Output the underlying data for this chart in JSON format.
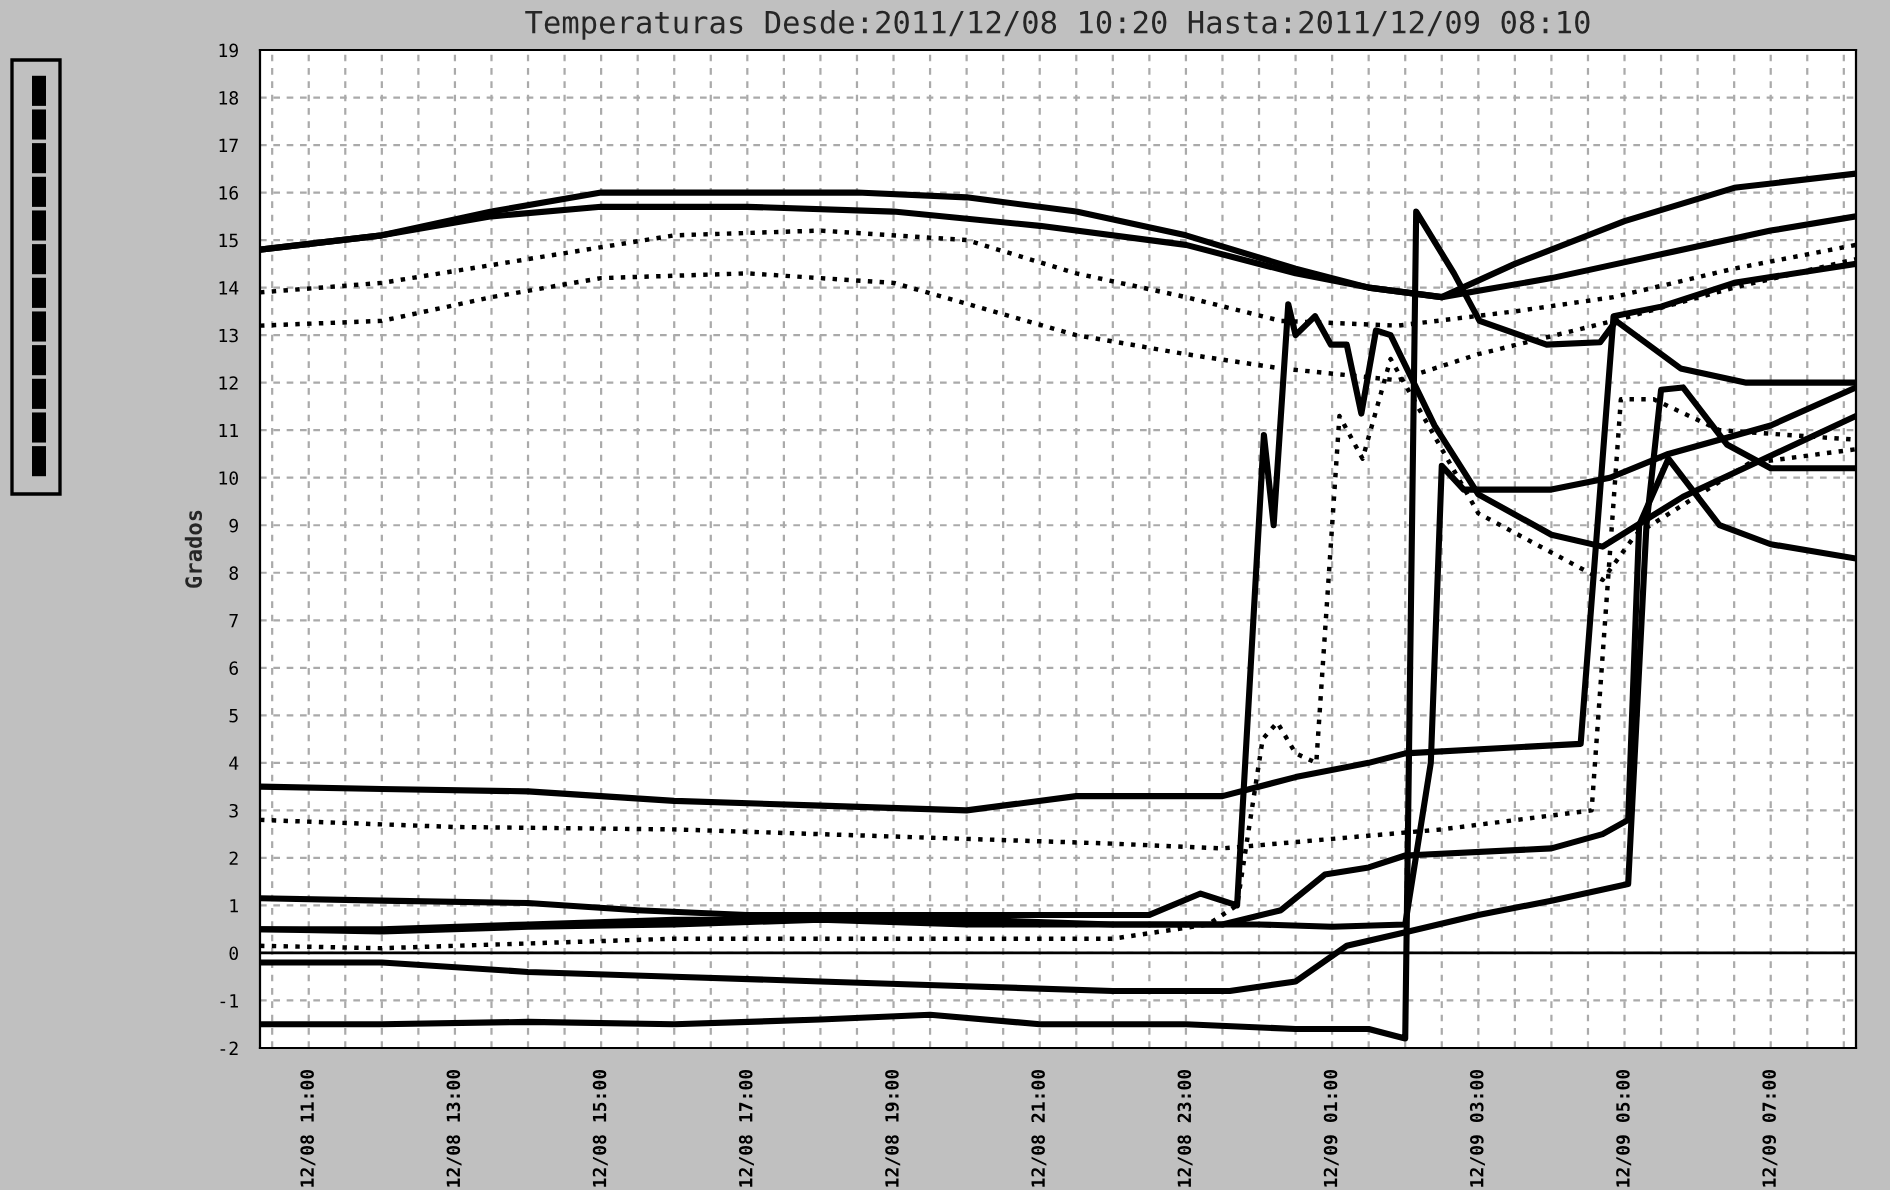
{
  "chart_data": {
    "type": "line",
    "title": "Temperaturas Desde:2011/12/08 10:20 Hasta:2011/12/09 08:10",
    "ylabel": "Grados",
    "xlim": [
      "2011-12-08T10:20",
      "2011-12-09T08:10"
    ],
    "ylim": [
      -2,
      19
    ],
    "yticks": [
      -2,
      -1,
      0,
      1,
      2,
      3,
      4,
      5,
      6,
      7,
      8,
      9,
      10,
      11,
      12,
      13,
      14,
      15,
      16,
      17,
      18,
      19
    ],
    "xticks": [
      {
        "value": "2011-12-08T10:30",
        "label": null
      },
      {
        "value": "2011-12-08T11:00",
        "label": "12/08 11:00"
      },
      {
        "value": "2011-12-08T11:30",
        "label": null
      },
      {
        "value": "2011-12-08T12:00",
        "label": null
      },
      {
        "value": "2011-12-08T12:30",
        "label": null
      },
      {
        "value": "2011-12-08T13:00",
        "label": "12/08 13:00"
      },
      {
        "value": "2011-12-08T13:30",
        "label": null
      },
      {
        "value": "2011-12-08T14:00",
        "label": null
      },
      {
        "value": "2011-12-08T14:30",
        "label": null
      },
      {
        "value": "2011-12-08T15:00",
        "label": "12/08 15:00"
      },
      {
        "value": "2011-12-08T15:30",
        "label": null
      },
      {
        "value": "2011-12-08T16:00",
        "label": null
      },
      {
        "value": "2011-12-08T16:30",
        "label": null
      },
      {
        "value": "2011-12-08T17:00",
        "label": "12/08 17:00"
      },
      {
        "value": "2011-12-08T17:30",
        "label": null
      },
      {
        "value": "2011-12-08T18:00",
        "label": null
      },
      {
        "value": "2011-12-08T18:30",
        "label": null
      },
      {
        "value": "2011-12-08T19:00",
        "label": "12/08 19:00"
      },
      {
        "value": "2011-12-08T19:30",
        "label": null
      },
      {
        "value": "2011-12-08T20:00",
        "label": null
      },
      {
        "value": "2011-12-08T20:30",
        "label": null
      },
      {
        "value": "2011-12-08T21:00",
        "label": "12/08 21:00"
      },
      {
        "value": "2011-12-08T21:30",
        "label": null
      },
      {
        "value": "2011-12-08T22:00",
        "label": null
      },
      {
        "value": "2011-12-08T22:30",
        "label": null
      },
      {
        "value": "2011-12-08T23:00",
        "label": "12/08 23:00"
      },
      {
        "value": "2011-12-08T23:30",
        "label": null
      },
      {
        "value": "2011-12-09T00:00",
        "label": null
      },
      {
        "value": "2011-12-09T00:30",
        "label": null
      },
      {
        "value": "2011-12-09T01:00",
        "label": "12/09 01:00"
      },
      {
        "value": "2011-12-09T01:30",
        "label": null
      },
      {
        "value": "2011-12-09T02:00",
        "label": null
      },
      {
        "value": "2011-12-09T02:30",
        "label": null
      },
      {
        "value": "2011-12-09T03:00",
        "label": "12/09 03:00"
      },
      {
        "value": "2011-12-09T03:30",
        "label": null
      },
      {
        "value": "2011-12-09T04:00",
        "label": null
      },
      {
        "value": "2011-12-09T04:30",
        "label": null
      },
      {
        "value": "2011-12-09T05:00",
        "label": "12/09 05:00"
      },
      {
        "value": "2011-12-09T05:30",
        "label": null
      },
      {
        "value": "2011-12-09T06:00",
        "label": null
      },
      {
        "value": "2011-12-09T06:30",
        "label": null
      },
      {
        "value": "2011-12-09T07:00",
        "label": "12/09 07:00"
      },
      {
        "value": "2011-12-09T07:30",
        "label": null
      },
      {
        "value": "2011-12-09T08:00",
        "label": null
      }
    ],
    "grid": true,
    "marker": "none",
    "ref_lines": [
      {
        "axis": "y",
        "value": 0,
        "color": "#000000",
        "line_style": "solid"
      }
    ],
    "series": [
      {
        "color": "#000000",
        "line_style": "solid",
        "x": [
          "2011-12-08T10:20",
          "2011-12-08T12:00",
          "2011-12-08T13:30",
          "2011-12-08T15:00",
          "2011-12-08T17:00",
          "2011-12-08T18:30",
          "2011-12-08T20:00",
          "2011-12-08T21:30",
          "2011-12-08T23:00",
          "2011-12-09T00:30",
          "2011-12-09T01:30",
          "2011-12-09T02:30",
          "2011-12-09T03:30",
          "2011-12-09T05:00",
          "2011-12-09T06:30",
          "2011-12-09T08:10"
        ],
        "values": [
          14.8,
          15.1,
          15.6,
          16.0,
          16.0,
          16.0,
          15.9,
          15.6,
          15.1,
          14.4,
          14.0,
          13.8,
          14.5,
          15.4,
          16.1,
          16.4
        ]
      },
      {
        "color": "#000000",
        "line_style": "solid",
        "x": [
          "2011-12-08T10:20",
          "2011-12-08T12:00",
          "2011-12-08T13:30",
          "2011-12-08T15:00",
          "2011-12-08T17:00",
          "2011-12-08T19:00",
          "2011-12-08T21:00",
          "2011-12-08T23:00",
          "2011-12-09T00:30",
          "2011-12-09T01:30",
          "2011-12-09T02:30",
          "2011-12-09T04:00",
          "2011-12-09T05:30",
          "2011-12-09T07:00",
          "2011-12-09T08:10"
        ],
        "values": [
          14.8,
          15.1,
          15.5,
          15.7,
          15.7,
          15.6,
          15.3,
          14.9,
          14.3,
          14.0,
          13.8,
          14.2,
          14.7,
          15.2,
          15.5
        ]
      },
      {
        "color": "#000000",
        "line_style": "dotted",
        "x": [
          "2011-12-08T10:20",
          "2011-12-08T12:00",
          "2011-12-08T14:00",
          "2011-12-08T16:00",
          "2011-12-08T18:00",
          "2011-12-08T20:00",
          "2011-12-08T21:30",
          "2011-12-08T23:00",
          "2011-12-09T00:18",
          "2011-12-09T01:54",
          "2011-12-09T03:30",
          "2011-12-09T04:51",
          "2011-12-09T06:30",
          "2011-12-09T08:10"
        ],
        "values": [
          13.9,
          14.1,
          14.6,
          15.1,
          15.2,
          15.0,
          14.3,
          13.8,
          13.3,
          13.2,
          13.5,
          13.8,
          14.4,
          14.9
        ]
      },
      {
        "color": "#000000",
        "line_style": "dotted",
        "x": [
          "2011-12-08T10:20",
          "2011-12-08T12:00",
          "2011-12-08T13:30",
          "2011-12-08T15:00",
          "2011-12-08T17:00",
          "2011-12-08T19:00",
          "2011-12-08T21:30",
          "2011-12-08T23:00",
          "2011-12-09T00:18",
          "2011-12-09T01:54",
          "2011-12-09T03:00",
          "2011-12-09T04:51",
          "2011-12-09T06:30",
          "2011-12-09T08:10"
        ],
        "values": [
          13.2,
          13.3,
          13.8,
          14.2,
          14.3,
          14.1,
          13.0,
          12.6,
          12.3,
          12.05,
          12.6,
          13.3,
          14.0,
          14.6
        ]
      },
      {
        "color": "#000000",
        "line_style": "solid",
        "x": [
          "2011-12-08T10:20",
          "2011-12-08T12:00",
          "2011-12-08T14:00",
          "2011-12-08T16:00",
          "2011-12-08T18:00",
          "2011-12-08T20:00",
          "2011-12-08T21:30",
          "2011-12-08T23:30",
          "2011-12-09T00:30",
          "2011-12-09T01:30",
          "2011-12-09T02:00",
          "2011-12-09T04:24",
          "2011-12-09T04:51",
          "2011-12-09T05:30",
          "2011-12-09T06:30",
          "2011-12-09T08:10"
        ],
        "values": [
          3.5,
          3.45,
          3.4,
          3.2,
          3.1,
          3.0,
          3.3,
          3.3,
          3.7,
          4.0,
          4.2,
          4.4,
          13.4,
          13.6,
          14.1,
          14.5
        ]
      },
      {
        "color": "#000000",
        "line_style": "dotted",
        "x": [
          "2011-12-08T10:20",
          "2011-12-08T13:00",
          "2011-12-08T16:00",
          "2011-12-08T18:00",
          "2011-12-08T20:00",
          "2011-12-08T22:00",
          "2011-12-08T23:30",
          "2011-12-09T01:00",
          "2011-12-09T02:30",
          "2011-12-09T04:33",
          "2011-12-09T04:57",
          "2011-12-09T05:24",
          "2011-12-09T06:18",
          "2011-12-09T08:10"
        ],
        "values": [
          2.8,
          2.65,
          2.6,
          2.5,
          2.4,
          2.3,
          2.2,
          2.4,
          2.6,
          3.0,
          11.65,
          11.65,
          11.0,
          10.8
        ]
      },
      {
        "color": "#000000",
        "line_style": "dotted",
        "x": [
          "2011-12-08T10:20",
          "2011-12-08T12:00",
          "2011-12-08T14:00",
          "2011-12-08T16:00",
          "2011-12-08T18:00",
          "2011-12-08T20:00",
          "2011-12-08T22:00",
          "2011-12-08T23:18",
          "2011-12-08T23:42",
          "2011-12-09T00:03",
          "2011-12-09T00:15",
          "2011-12-09T00:30",
          "2011-12-09T00:47",
          "2011-12-09T01:06",
          "2011-12-09T01:25",
          "2011-12-09T01:48",
          "2011-12-09T03:00",
          "2011-12-09T04:42",
          "2011-12-09T05:09",
          "2011-12-09T06:42",
          "2011-12-09T08:10"
        ],
        "values": [
          0.15,
          0.1,
          0.2,
          0.3,
          0.3,
          0.3,
          0.3,
          0.6,
          1.0,
          4.5,
          4.85,
          4.2,
          4.0,
          11.3,
          10.4,
          12.5,
          9.25,
          7.85,
          8.8,
          10.3,
          10.6
        ]
      },
      {
        "color": "#000000",
        "line_style": "solid",
        "x": [
          "2011-12-08T10:20",
          "2011-12-08T12:00",
          "2011-12-08T14:00",
          "2011-12-08T15:30",
          "2011-12-08T17:00",
          "2011-12-08T19:00",
          "2011-12-08T21:00",
          "2011-12-08T22:30",
          "2011-12-08T23:12",
          "2011-12-08T23:42",
          "2011-12-09T00:04",
          "2011-12-09T00:12",
          "2011-12-09T00:24",
          "2011-12-09T00:30",
          "2011-12-09T00:46",
          "2011-12-09T00:59",
          "2011-12-09T01:12",
          "2011-12-09T01:24",
          "2011-12-09T01:36",
          "2011-12-09T01:48",
          "2011-12-09T02:24",
          "2011-12-09T03:00",
          "2011-12-09T04:00",
          "2011-12-09T04:42",
          "2011-12-09T05:48",
          "2011-12-09T08:10"
        ],
        "values": [
          1.15,
          1.1,
          1.05,
          0.9,
          0.8,
          0.8,
          0.8,
          0.8,
          1.25,
          1.0,
          10.9,
          9.0,
          13.65,
          13.0,
          13.4,
          12.8,
          12.8,
          11.35,
          13.1,
          13.0,
          11.1,
          9.65,
          8.8,
          8.55,
          9.6,
          11.3
        ]
      },
      {
        "color": "#000000",
        "line_style": "solid",
        "x": [
          "2011-12-08T10:20",
          "2011-12-08T12:00",
          "2011-12-08T14:00",
          "2011-12-08T16:00",
          "2011-12-08T18:00",
          "2011-12-08T20:00",
          "2011-12-08T22:00",
          "2011-12-09T00:00",
          "2011-12-09T01:00",
          "2011-12-09T02:00",
          "2011-12-09T02:21",
          "2011-12-09T02:30",
          "2011-12-09T02:48",
          "2011-12-09T04:00",
          "2011-12-09T04:48",
          "2011-12-09T05:36",
          "2011-12-09T07:00",
          "2011-12-09T08:10"
        ],
        "values": [
          0.5,
          0.45,
          0.55,
          0.6,
          0.7,
          0.6,
          0.6,
          0.6,
          0.55,
          0.6,
          4.0,
          10.25,
          9.75,
          9.75,
          10.0,
          10.5,
          11.1,
          11.9
        ]
      },
      {
        "color": "#000000",
        "line_style": "solid",
        "x": [
          "2011-12-08T10:20",
          "2011-12-08T12:00",
          "2011-12-08T14:00",
          "2011-12-08T16:00",
          "2011-12-08T18:00",
          "2011-12-08T20:00",
          "2011-12-08T22:00",
          "2011-12-08T23:30",
          "2011-12-09T00:18",
          "2011-12-09T00:54",
          "2011-12-09T01:30",
          "2011-12-09T02:00",
          "2011-12-09T04:00",
          "2011-12-09T04:42",
          "2011-12-09T05:03",
          "2011-12-09T05:12",
          "2011-12-09T05:36",
          "2011-12-09T06:18",
          "2011-12-09T07:00",
          "2011-12-09T08:10"
        ],
        "values": [
          0.5,
          0.5,
          0.6,
          0.7,
          0.7,
          0.7,
          0.6,
          0.6,
          0.9,
          1.65,
          1.8,
          2.05,
          2.2,
          2.5,
          2.8,
          9.0,
          10.4,
          9.0,
          8.6,
          8.3
        ]
      },
      {
        "color": "#000000",
        "line_style": "solid",
        "x": [
          "2011-12-08T10:20",
          "2011-12-08T12:00",
          "2011-12-08T14:00",
          "2011-12-08T16:00",
          "2011-12-08T18:00",
          "2011-12-08T20:00",
          "2011-12-08T22:00",
          "2011-12-08T23:36",
          "2011-12-09T00:30",
          "2011-12-09T01:12",
          "2011-12-09T01:54",
          "2011-12-09T03:00",
          "2011-12-09T04:00",
          "2011-12-09T05:03",
          "2011-12-09T05:18",
          "2011-12-09T05:30",
          "2011-12-09T05:48",
          "2011-12-09T06:24",
          "2011-12-09T07:00",
          "2011-12-09T08:10"
        ],
        "values": [
          -0.2,
          -0.2,
          -0.4,
          -0.5,
          -0.6,
          -0.7,
          -0.8,
          -0.8,
          -0.6,
          0.15,
          0.4,
          0.8,
          1.1,
          1.45,
          9.0,
          11.85,
          11.9,
          10.7,
          10.2,
          10.2
        ]
      },
      {
        "color": "#000000",
        "line_style": "solid",
        "x": [
          "2011-12-08T10:20",
          "2011-12-08T12:00",
          "2011-12-08T14:00",
          "2011-12-08T16:00",
          "2011-12-08T18:00",
          "2011-12-08T19:30",
          "2011-12-08T21:00",
          "2011-12-08T23:00",
          "2011-12-09T00:30",
          "2011-12-09T01:30",
          "2011-12-09T02:00",
          "2011-12-09T02:09",
          "2011-12-09T02:40",
          "2011-12-09T03:01",
          "2011-12-09T03:56",
          "2011-12-09T04:40",
          "2011-12-09T04:53",
          "2011-12-09T05:46",
          "2011-12-09T06:40",
          "2011-12-09T08:10"
        ],
        "values": [
          -1.5,
          -1.5,
          -1.45,
          -1.5,
          -1.4,
          -1.3,
          -1.5,
          -1.5,
          -1.6,
          -1.6,
          -1.8,
          15.6,
          14.3,
          13.3,
          12.8,
          12.85,
          13.3,
          12.3,
          12.0,
          12.0
        ]
      }
    ]
  }
}
